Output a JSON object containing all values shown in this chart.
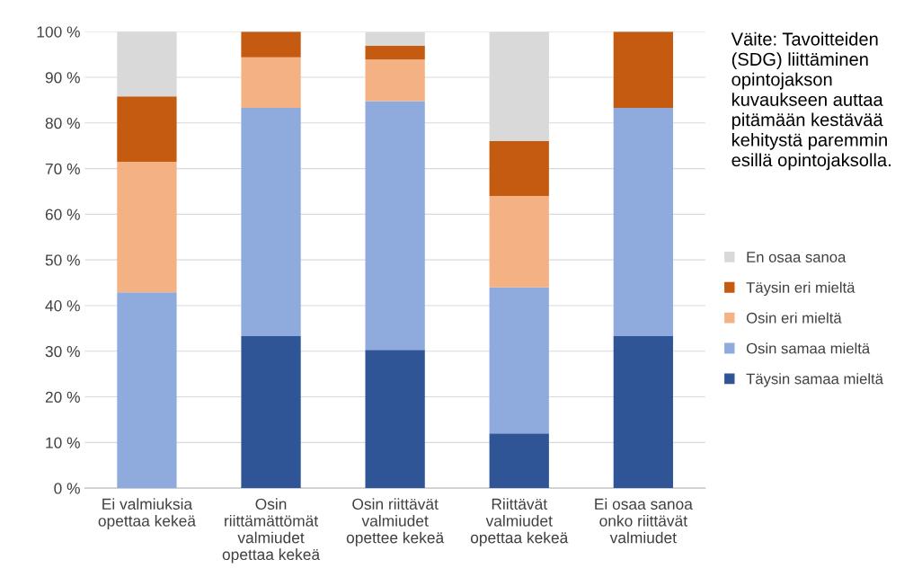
{
  "chart_data": {
    "type": "bar",
    "stacked": true,
    "categories": [
      "Ei valmiuksia\nopettaa kekeä",
      "Osin\nriittämättömät\nvalmiudet\nopettaa kekeä",
      "Osin riittävät\nvalmiudet\nopettee kekeä",
      "Riittävät\nvalmiudet\nopettaa kekeä",
      "Ei osaa sanoa\nonko riittävät\nvalmiudet"
    ],
    "series": [
      {
        "name": "Täysin samaa mieltä",
        "color": "#2f5597",
        "values": [
          0,
          33.3,
          30.3,
          12,
          33.3
        ]
      },
      {
        "name": "Osin samaa mieltä",
        "color": "#8faadc",
        "values": [
          42.9,
          50,
          54.5,
          32,
          50
        ]
      },
      {
        "name": "Osin eri mieltä",
        "color": "#f4b183",
        "values": [
          28.6,
          11.1,
          9.1,
          20,
          0
        ]
      },
      {
        "name": "Täysin eri mieltä",
        "color": "#c55a11",
        "values": [
          14.3,
          5.6,
          3,
          12,
          16.7
        ]
      },
      {
        "name": "En osaa sanoa",
        "color": "#d9d9d9",
        "values": [
          14.3,
          0,
          3,
          24,
          0
        ]
      }
    ],
    "ylim": [
      0,
      100
    ],
    "yticks": [
      {
        "value": 0,
        "label": "0 %"
      },
      {
        "value": 10,
        "label": "10 %"
      },
      {
        "value": 20,
        "label": "20 %"
      },
      {
        "value": 30,
        "label": "30 %"
      },
      {
        "value": 40,
        "label": "40 %"
      },
      {
        "value": 50,
        "label": "50 %"
      },
      {
        "value": 60,
        "label": "60 %"
      },
      {
        "value": 70,
        "label": "70 %"
      },
      {
        "value": 80,
        "label": "80 %"
      },
      {
        "value": 90,
        "label": "90 %"
      },
      {
        "value": 100,
        "label": "100 %"
      }
    ],
    "grid": "y",
    "legend": "right",
    "annotations": [
      "Väite: Tavoitteiden\n(SDG) liittäminen\nopintojakson\nkuvaukseen auttaa\npitämään kestävää\nkehitystä paremmin\nesillä opintojaksolla."
    ]
  }
}
